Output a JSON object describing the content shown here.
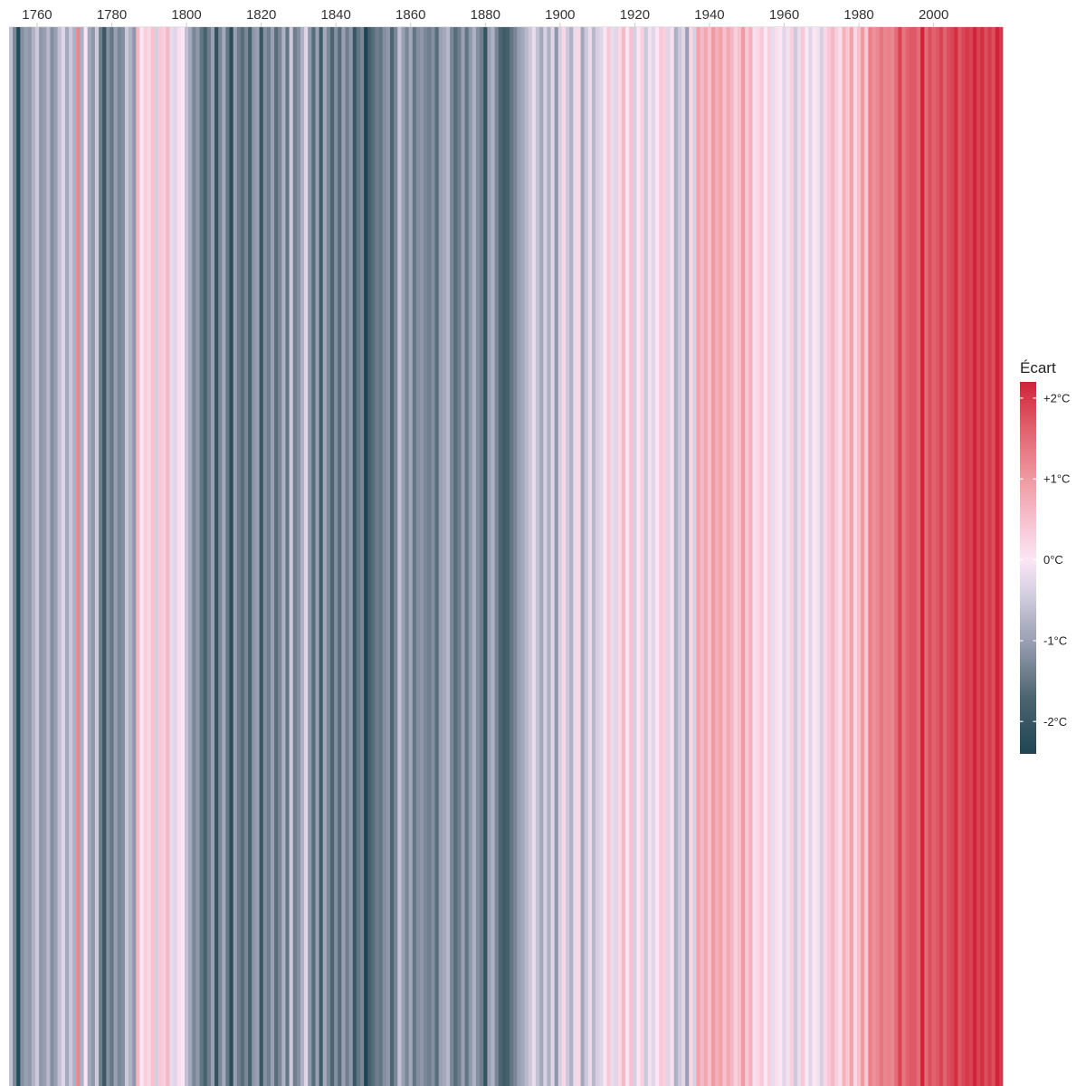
{
  "chart_data": {
    "type": "heatmap",
    "title": "",
    "xlabel": "",
    "ylabel": "",
    "x_start": 1753,
    "x_end": 2019,
    "x_ticks": [
      {
        "value": 1760,
        "label": "1760"
      },
      {
        "value": 1780,
        "label": "1780"
      },
      {
        "value": 1800,
        "label": "1800"
      },
      {
        "value": 1820,
        "label": "1820"
      },
      {
        "value": 1840,
        "label": "1840"
      },
      {
        "value": 1860,
        "label": "1860"
      },
      {
        "value": 1880,
        "label": "1880"
      },
      {
        "value": 1900,
        "label": "1900"
      },
      {
        "value": 1920,
        "label": "1920"
      },
      {
        "value": 1940,
        "label": "1940"
      },
      {
        "value": 1960,
        "label": "1960"
      },
      {
        "value": 1980,
        "label": "1980"
      },
      {
        "value": 2000,
        "label": "2000"
      }
    ],
    "values": [
      -0.6,
      -1.3,
      -2.3,
      -1.2,
      -1.0,
      -1.1,
      -0.8,
      -0.5,
      -1.1,
      -1.0,
      -0.7,
      -1.2,
      -1.0,
      -0.6,
      -0.3,
      -0.9,
      -0.5,
      -0.8,
      1.2,
      -0.8,
      0.0,
      -0.9,
      -1.1,
      -0.5,
      -1.4,
      -2.0,
      -1.2,
      -1.5,
      -1.0,
      -1.3,
      -1.2,
      -0.5,
      -0.8,
      -1.1,
      0.6,
      0.0,
      0.3,
      0.2,
      0.5,
      -0.4,
      0.4,
      0.3,
      0.6,
      -0.2,
      -0.3,
      0.1,
      0.0,
      -0.6,
      -0.9,
      -1.3,
      -1.1,
      -1.5,
      -1.8,
      -1.4,
      -1.0,
      -2.1,
      -1.3,
      -0.9,
      -1.5,
      -2.2,
      -1.0,
      -1.4,
      -1.6,
      -1.3,
      -1.8,
      -1.1,
      -1.0,
      -2.0,
      -1.2,
      -1.4,
      -1.0,
      -1.6,
      -1.3,
      -0.8,
      -1.5,
      -0.5,
      -1.4,
      -1.2,
      -0.8,
      -0.3,
      -1.1,
      -1.6,
      -1.0,
      -1.9,
      -0.9,
      -1.3,
      -1.7,
      -1.2,
      -1.6,
      -1.0,
      -1.4,
      -1.1,
      -2.0,
      -1.5,
      -1.3,
      -2.4,
      -1.8,
      -1.6,
      -1.4,
      -1.5,
      -1.2,
      -1.1,
      -1.7,
      -1.3,
      -0.6,
      -1.0,
      -1.3,
      -0.9,
      -1.5,
      -1.2,
      -1.1,
      -1.3,
      -1.4,
      -1.2,
      -1.6,
      -1.0,
      -0.9,
      -0.7,
      -1.3,
      -1.6,
      -1.4,
      -1.0,
      -1.5,
      -1.1,
      -0.8,
      -1.2,
      -1.4,
      -2.1,
      -1.0,
      -0.8,
      -1.3,
      -1.7,
      -1.9,
      -1.8,
      -1.5,
      -1.3,
      -1.0,
      -0.9,
      -0.7,
      -0.5,
      -0.2,
      -0.6,
      -0.9,
      -0.4,
      -0.8,
      -0.3,
      -1.1,
      -0.4,
      0.2,
      -0.5,
      -0.8,
      -0.2,
      0.2,
      -0.9,
      -0.5,
      -0.2,
      -0.7,
      -0.4,
      -0.3,
      0.0,
      0.4,
      -0.2,
      -0.3,
      0.2,
      0.6,
      0.0,
      0.5,
      -0.4,
      0.0,
      0.3,
      -0.5,
      -0.1,
      -0.3,
      0.0,
      0.4,
      0.3,
      -0.3,
      0.1,
      -0.8,
      -0.5,
      -0.3,
      -1.0,
      0.2,
      -0.4,
      0.9,
      0.6,
      0.8,
      0.5,
      1.0,
      0.7,
      0.9,
      0.5,
      0.8,
      0.6,
      0.3,
      0.5,
      1.0,
      0.4,
      0.7,
      0.1,
      0.2,
      0.4,
      0.0,
      0.3,
      -0.2,
      0.1,
      0.0,
      -0.3,
      -0.1,
      0.3,
      -0.5,
      -0.2,
      0.4,
      0.0,
      -0.3,
      0.0,
      -0.1,
      -0.4,
      0.2,
      0.4,
      0.6,
      0.3,
      0.1,
      0.7,
      0.4,
      0.9,
      0.2,
      0.5,
      1.0,
      0.4,
      1.3,
      1.1,
      1.2,
      1.4,
      1.2,
      1.3,
      1.2,
      1.5,
      1.9,
      1.4,
      1.6,
      1.7,
      1.7,
      1.5,
      2.2,
      1.5,
      1.8,
      1.6,
      1.7,
      1.9,
      1.6,
      1.8,
      1.9,
      2.1,
      1.7,
      1.9,
      2.0,
      1.9,
      2.2,
      1.9,
      2.1,
      1.8,
      2.0,
      1.8,
      2.2,
      2.0
    ],
    "color_scale": {
      "stops": [
        {
          "value": -2.4,
          "color": "#1f4553"
        },
        {
          "value": -1.7,
          "color": "#4d6570"
        },
        {
          "value": -1.0,
          "color": "#9aa0b4"
        },
        {
          "value": -0.4,
          "color": "#d7d0e2"
        },
        {
          "value": 0.0,
          "color": "#fbe6f5"
        },
        {
          "value": 0.5,
          "color": "#f7c0ce"
        },
        {
          "value": 1.0,
          "color": "#ef9aa2"
        },
        {
          "value": 1.6,
          "color": "#e1636f"
        },
        {
          "value": 2.2,
          "color": "#cf2438"
        }
      ]
    },
    "legend": {
      "title": "Écart",
      "position": "right",
      "min": -2.4,
      "max": 2.2,
      "ticks": [
        {
          "value": 2,
          "label": "+2°C"
        },
        {
          "value": 1,
          "label": "+1°C"
        },
        {
          "value": 0,
          "label": "0°C"
        },
        {
          "value": -1,
          "label": "-1°C"
        },
        {
          "value": -2,
          "label": "-2°C"
        }
      ]
    }
  }
}
